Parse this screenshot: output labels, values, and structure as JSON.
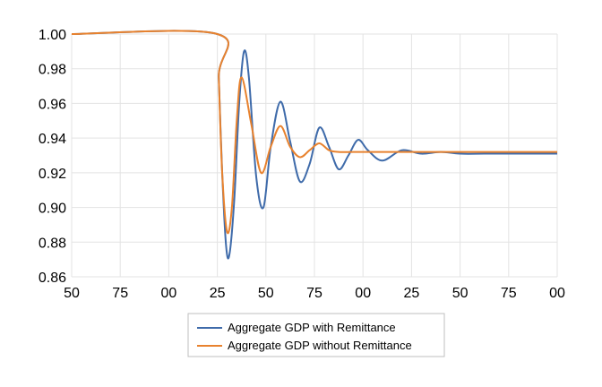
{
  "chart_data": {
    "type": "line",
    "title": "",
    "xlabel": "",
    "ylabel": "",
    "x_tick_labels": [
      "50",
      "75",
      "00",
      "25",
      "50",
      "75",
      "00",
      "25",
      "50",
      "75",
      "00"
    ],
    "y_tick_labels": [
      "0.86",
      "0.88",
      "0.90",
      "0.92",
      "0.94",
      "0.96",
      "0.98",
      "1.00"
    ],
    "y_ticks": [
      0.86,
      0.88,
      0.9,
      0.92,
      0.94,
      0.96,
      0.98,
      1.0
    ],
    "ylim": [
      0.86,
      1.0
    ],
    "x_tick_index_range": [
      0,
      10
    ],
    "grid": true,
    "legend_position": "bottom",
    "series": [
      {
        "name": "Aggregate GDP with Remittance",
        "color": "#3F6BAA",
        "x": [
          0,
          3.0,
          3.03,
          3.1,
          3.18,
          3.25,
          3.35,
          3.45,
          3.55,
          3.65,
          3.8,
          3.95,
          4.1,
          4.3,
          4.5,
          4.7,
          4.9,
          5.1,
          5.3,
          5.5,
          5.7,
          5.9,
          6.1,
          6.4,
          6.8,
          7.2,
          7.6,
          8.0,
          8.5,
          9.0,
          10
        ],
        "y": [
          1.0,
          1.0,
          0.975,
          0.92,
          0.878,
          0.873,
          0.905,
          0.96,
          0.99,
          0.975,
          0.918,
          0.9,
          0.935,
          0.961,
          0.938,
          0.915,
          0.925,
          0.946,
          0.935,
          0.922,
          0.93,
          0.939,
          0.933,
          0.927,
          0.933,
          0.931,
          0.932,
          0.931,
          0.931,
          0.931,
          0.931
        ]
      },
      {
        "name": "Aggregate GDP without Remittance",
        "color": "#E8822E",
        "x": [
          0,
          3.0,
          3.03,
          3.1,
          3.2,
          3.3,
          3.4,
          3.5,
          3.7,
          3.9,
          4.1,
          4.3,
          4.5,
          4.7,
          4.9,
          5.1,
          5.3,
          5.5,
          5.8,
          6.2,
          6.6,
          7.0,
          8.0,
          9.0,
          10
        ],
        "y": [
          1.0,
          1.0,
          0.975,
          0.92,
          0.886,
          0.9,
          0.95,
          0.975,
          0.948,
          0.92,
          0.935,
          0.947,
          0.935,
          0.929,
          0.933,
          0.937,
          0.933,
          0.932,
          0.932,
          0.932,
          0.932,
          0.932,
          0.932,
          0.932,
          0.932
        ]
      }
    ]
  }
}
